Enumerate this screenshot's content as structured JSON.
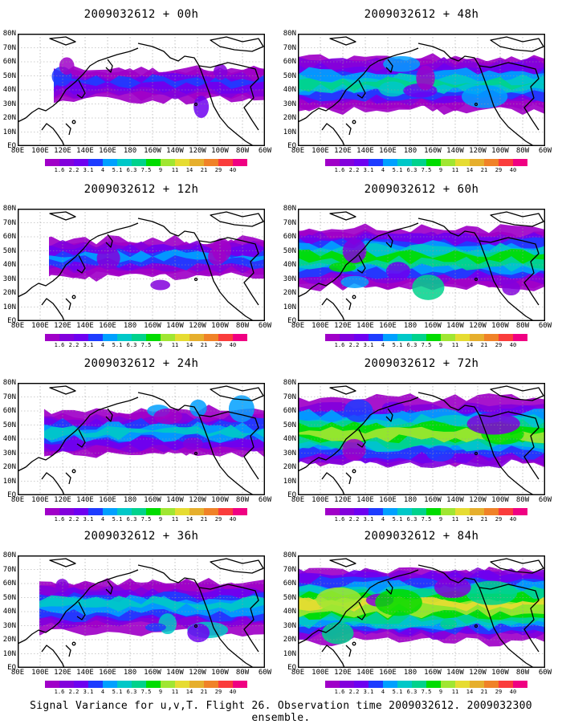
{
  "panels": [
    {
      "title": "2009032612 + 00h",
      "intensity": 0.25
    },
    {
      "title": "2009032612 + 48h",
      "intensity": 0.6
    },
    {
      "title": "2009032612 + 12h",
      "intensity": 0.35
    },
    {
      "title": "2009032612 + 60h",
      "intensity": 0.7
    },
    {
      "title": "2009032612 + 24h",
      "intensity": 0.45
    },
    {
      "title": "2009032612 + 72h",
      "intensity": 0.8
    },
    {
      "title": "2009032612 + 36h",
      "intensity": 0.55
    },
    {
      "title": "2009032612 + 84h",
      "intensity": 0.9
    }
  ],
  "lat_labels": [
    "80N",
    "70N",
    "60N",
    "50N",
    "40N",
    "30N",
    "20N",
    "10N",
    "EQ"
  ],
  "lon_labels": [
    "80E",
    "100E",
    "120E",
    "140E",
    "160E",
    "180",
    "160W",
    "140W",
    "120W",
    "100W",
    "80W",
    "60W"
  ],
  "colorbar": {
    "labels": [
      "1.6",
      "2.2",
      "3.1",
      "4",
      "5.1",
      "6.3",
      "7.5",
      "9",
      "11",
      "14",
      "21",
      "29",
      "40"
    ],
    "colors": [
      "#a000c8",
      "#8200dc",
      "#6e00f0",
      "#1e3cff",
      "#00a0ff",
      "#00c8c8",
      "#00d28c",
      "#00dc00",
      "#a0e632",
      "#e6dc32",
      "#e6af2d",
      "#f08228",
      "#fa3c3c",
      "#f00082"
    ]
  },
  "footer": "Signal Variance for u,v,T. Flight 26. Observation time 2009032612. 2009032300 ensemble."
}
